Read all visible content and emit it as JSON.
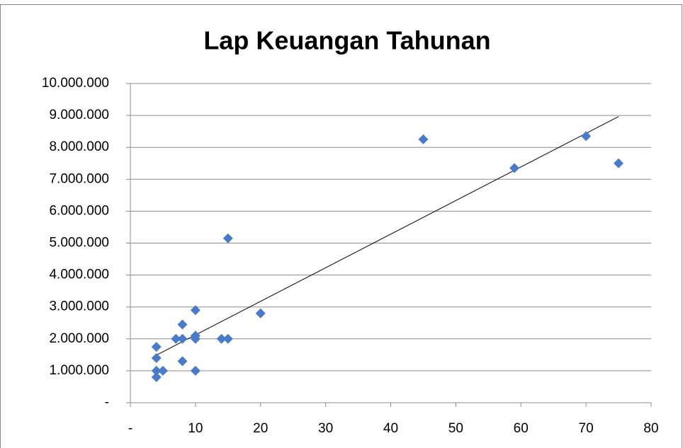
{
  "chart_data": {
    "type": "scatter",
    "title": "Lap Keuangan Tahunan",
    "x": [
      4,
      4,
      4,
      4,
      5,
      7,
      8,
      8,
      8,
      10,
      10,
      10,
      10,
      14,
      15,
      15,
      20,
      45,
      59,
      70,
      75
    ],
    "values": [
      1750000,
      1400000,
      1000000,
      800000,
      1000000,
      2000000,
      2450000,
      2000000,
      1300000,
      2900000,
      2100000,
      2000000,
      1000000,
      2000000,
      2000000,
      5150000,
      2800000,
      8250000,
      7350000,
      8350000,
      7500000
    ],
    "color": "#4a7bc8",
    "trendline": true,
    "grid": true,
    "xlim": [
      0,
      80
    ],
    "xticks": [
      {
        "value": 0,
        "label": "-"
      },
      10,
      20,
      30,
      40,
      50,
      60,
      70,
      80
    ],
    "ylim": [
      0,
      10000000
    ],
    "yticks": [
      {
        "value": 0,
        "label": "-"
      },
      {
        "value": 1000000,
        "label": "1.000.000"
      },
      {
        "value": 2000000,
        "label": "2.000.000"
      },
      {
        "value": 3000000,
        "label": "3.000.000"
      },
      {
        "value": 4000000,
        "label": "4.000.000"
      },
      {
        "value": 5000000,
        "label": "5.000.000"
      },
      {
        "value": 6000000,
        "label": "6.000.000"
      },
      {
        "value": 7000000,
        "label": "7.000.000"
      },
      {
        "value": 8000000,
        "label": "8.000.000"
      },
      {
        "value": 9000000,
        "label": "9.000.000"
      },
      {
        "value": 10000000,
        "label": "10.000.000"
      }
    ]
  }
}
